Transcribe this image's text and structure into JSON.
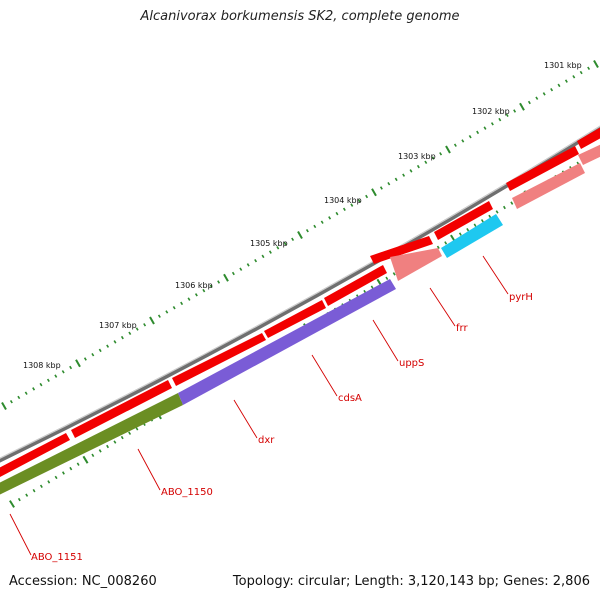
{
  "title": "Alcanivorax borkumensis SK2, complete genome",
  "footer": {
    "accession": "Accession: NC_008260",
    "topology": "Topology: circular; Length: 3,120,143 bp; Genes: 2,806"
  },
  "kbp_labels": [
    "1301 kbp",
    "1302 kbp",
    "1303 kbp",
    "1304 kbp",
    "1305 kbp",
    "1306 kbp",
    "1307 kbp",
    "1308 kbp"
  ],
  "gene_labels": [
    "pyrH",
    "frr",
    "uppS",
    "cdsA",
    "dxr",
    "ABO_1150",
    "ABO_1151"
  ],
  "colors": {
    "backbone": "#7a7a7a",
    "cds_forward": "#ff0000",
    "cds_reverse": "#f08080",
    "pyrH": "#1ec8f0",
    "uppS_cdsA_dxr": "#7a5cd6",
    "ABO_1150": "#6b8e23",
    "tick": "#2e8b2e",
    "label": "#d40000"
  }
}
